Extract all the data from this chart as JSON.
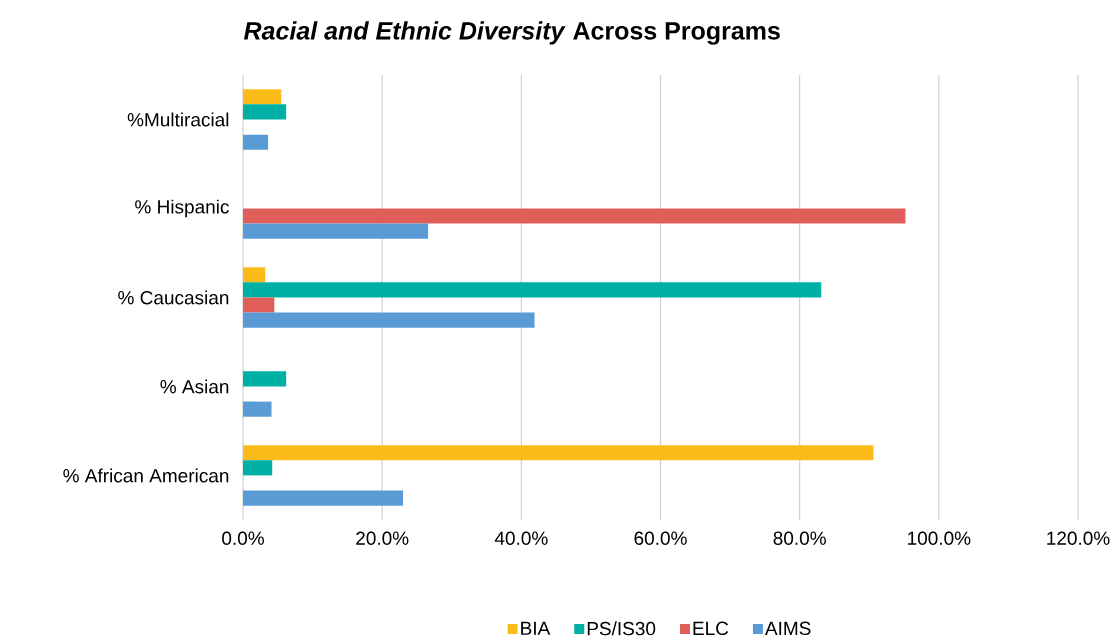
{
  "chart_data": {
    "type": "bar",
    "orientation": "horizontal",
    "title": "*Racial and Ethnic Diversity* Across Programs",
    "categories": [
      "%Multiracial",
      "% Hispanic",
      "% Caucasian",
      "% Asian",
      "% African American"
    ],
    "series": [
      {
        "name": "BIA",
        "color": "#fbbc1a",
        "values": [
          5.5,
          null,
          3.2,
          null,
          90.6
        ]
      },
      {
        "name": "PS/IS30",
        "color": "#00b0a5",
        "values": [
          6.2,
          null,
          83.1,
          6.2,
          4.2
        ]
      },
      {
        "name": "ELC",
        "color": "#e05e5a",
        "values": [
          null,
          95.2,
          4.5,
          null,
          null
        ]
      },
      {
        "name": "AIMS",
        "color": "#5b9bd5",
        "values": [
          3.6,
          26.6,
          41.9,
          4.1,
          23.0
        ]
      }
    ],
    "xlim": [
      0,
      120
    ],
    "xticks": [
      {
        "value": 0,
        "label": "0.0%"
      },
      {
        "value": 20,
        "label": "20.0%"
      },
      {
        "value": 40,
        "label": "40.0%"
      },
      {
        "value": 60,
        "label": "60.0%"
      },
      {
        "value": 80,
        "label": "80.0%"
      },
      {
        "value": 100,
        "label": "100.0%"
      },
      {
        "value": 120,
        "label": "120.0%"
      }
    ],
    "grid": "x",
    "legend": "bottom"
  }
}
